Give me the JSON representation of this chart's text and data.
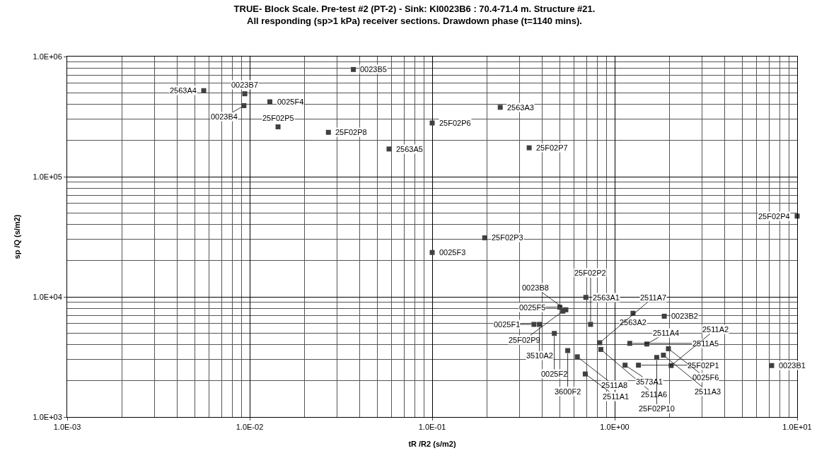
{
  "chart_data": {
    "type": "scatter",
    "title": "TRUE- Block Scale. Pre-test #2 (PT-2) - Sink: KI0023B6 : 70.4-71.4 m. Structure #21.\nAll responding (sp>1 kPa) receiver sections. Drawdown phase (t=1140 mins).",
    "xlabel": "tR /R2 (s/m2)",
    "ylabel": "sp /Q (s/m2)",
    "log": "xy",
    "grid": true,
    "legend": false,
    "marker": "square",
    "xlim": [
      0.001,
      10
    ],
    "ylim": [
      1000,
      1000000
    ],
    "xticks": [
      {
        "value": 0.001,
        "label": "1.0E-03"
      },
      {
        "value": 0.01,
        "label": "1.0E-02"
      },
      {
        "value": 0.1,
        "label": "1.0E-01"
      },
      {
        "value": 1,
        "label": "1.0E+00"
      },
      {
        "value": 10,
        "label": "1.0E+01"
      }
    ],
    "yticks": [
      {
        "value": 1000,
        "label": "1.0E+03"
      },
      {
        "value": 10000,
        "label": "1.0E+04"
      },
      {
        "value": 100000,
        "label": "1.0E+05"
      },
      {
        "value": 1000000,
        "label": "1.0E+06"
      }
    ],
    "series": [
      {
        "name": "2563A4",
        "color": "#404040",
        "x": [
          0.0056
        ],
        "values": [
          520000
        ]
      },
      {
        "name": "0023B7",
        "color": "#404040",
        "x": [
          0.0094
        ],
        "values": [
          490000
        ]
      },
      {
        "name": "0023B4",
        "color": "#404040",
        "x": [
          0.0093
        ],
        "values": [
          390000
        ]
      },
      {
        "name": "0025F4",
        "color": "#404040",
        "x": [
          0.0129
        ],
        "values": [
          420000
        ]
      },
      {
        "name": "0023B5",
        "color": "#404040",
        "x": [
          0.037
        ],
        "values": [
          780000
        ]
      },
      {
        "name": "25F02P5",
        "color": "#404040",
        "x": [
          0.0143
        ],
        "values": [
          260000
        ]
      },
      {
        "name": "25F02P8",
        "color": "#404040",
        "x": [
          0.027
        ],
        "values": [
          234000
        ]
      },
      {
        "name": "2563A5",
        "color": "#404040",
        "x": [
          0.058
        ],
        "values": [
          170000
        ]
      },
      {
        "name": "25F02P6",
        "color": "#404040",
        "x": [
          0.1
        ],
        "values": [
          280000
        ]
      },
      {
        "name": "2563A3",
        "color": "#404040",
        "x": [
          0.236
        ],
        "values": [
          378000
        ]
      },
      {
        "name": "25F02P7",
        "color": "#404040",
        "x": [
          0.34
        ],
        "values": [
          174000
        ]
      },
      {
        "name": "25F02P4",
        "color": "#404040",
        "x": [
          10
        ],
        "values": [
          47000
        ]
      },
      {
        "name": "25F02P3",
        "color": "#404040",
        "x": [
          0.194
        ],
        "values": [
          31000
        ]
      },
      {
        "name": "0025F3",
        "color": "#404040",
        "x": [
          0.1
        ],
        "values": [
          23400
        ]
      },
      {
        "name": "2563A1",
        "color": "#404040",
        "x": [
          0.695
        ],
        "values": [
          9900
        ]
      },
      {
        "name": "0025F5",
        "color": "#404040",
        "x": [
          0.5
        ],
        "values": [
          8200
        ]
      },
      {
        "name": "0023B8",
        "color": "#404040",
        "x": [
          0.54
        ],
        "values": [
          7800
        ]
      },
      {
        "name": "25F02P9",
        "color": "#404040",
        "x": [
          0.52
        ],
        "values": [
          7600
        ]
      },
      {
        "name": "2563A2",
        "color": "#404040",
        "x": [
          1.26
        ],
        "values": [
          7300
        ]
      },
      {
        "name": "0023B2",
        "color": "#404040",
        "x": [
          1.87
        ],
        "values": [
          6900
        ]
      },
      {
        "name": "0025F1",
        "color": "#404040",
        "x": [
          0.361
        ],
        "values": [
          5900
        ]
      },
      {
        "name": "3510A2",
        "color": "#404040",
        "x": [
          0.387
        ],
        "values": [
          5900
        ]
      },
      {
        "name": "25F02P2",
        "color": "#404040",
        "x": [
          0.738
        ],
        "values": [
          5900
        ]
      },
      {
        "name": "0025F2",
        "color": "#404040",
        "x": [
          0.467
        ],
        "values": [
          4960
        ]
      },
      {
        "name": "3600F2",
        "color": "#404040",
        "x": [
          0.553
        ],
        "values": [
          3570
        ]
      },
      {
        "name": "2511A8",
        "color": "#404040",
        "x": [
          0.624
        ],
        "values": [
          3170
        ]
      },
      {
        "name": "2511A1",
        "color": "#404040",
        "x": [
          0.69
        ],
        "values": [
          2280
        ]
      },
      {
        "name": "2511A7",
        "color": "#404040",
        "x": [
          0.828
        ],
        "values": [
          4150
        ]
      },
      {
        "name": "2511A6",
        "color": "#404040",
        "x": [
          0.84
        ],
        "values": [
          3650
        ]
      },
      {
        "name": "2511A5",
        "color": "#404040",
        "x": [
          1.21
        ],
        "values": [
          4100
        ]
      },
      {
        "name": "2511A4",
        "color": "#404040",
        "x": [
          1.5
        ],
        "values": [
          4050
        ]
      },
      {
        "name": "3573A1",
        "color": "#404040",
        "x": [
          1.14
        ],
        "values": [
          2700
        ]
      },
      {
        "name": "25F02P1",
        "color": "#404040",
        "x": [
          1.35
        ],
        "values": [
          2700
        ]
      },
      {
        "name": "0025F6",
        "color": "#404040",
        "x": [
          1.97
        ],
        "values": [
          3700
        ]
      },
      {
        "name": "2511A3",
        "color": "#404040",
        "x": [
          1.85
        ],
        "values": [
          3270
        ]
      },
      {
        "name": "25F02P10",
        "color": "#404040",
        "x": [
          1.7
        ],
        "values": [
          3130
        ]
      },
      {
        "name": "2511A2",
        "color": "#404040",
        "x": [
          2.04
        ],
        "values": [
          2680
        ]
      },
      {
        "name": "0023B1",
        "color": "#404040",
        "x": [
          7.25
        ],
        "values": [
          2680
        ]
      }
    ]
  }
}
